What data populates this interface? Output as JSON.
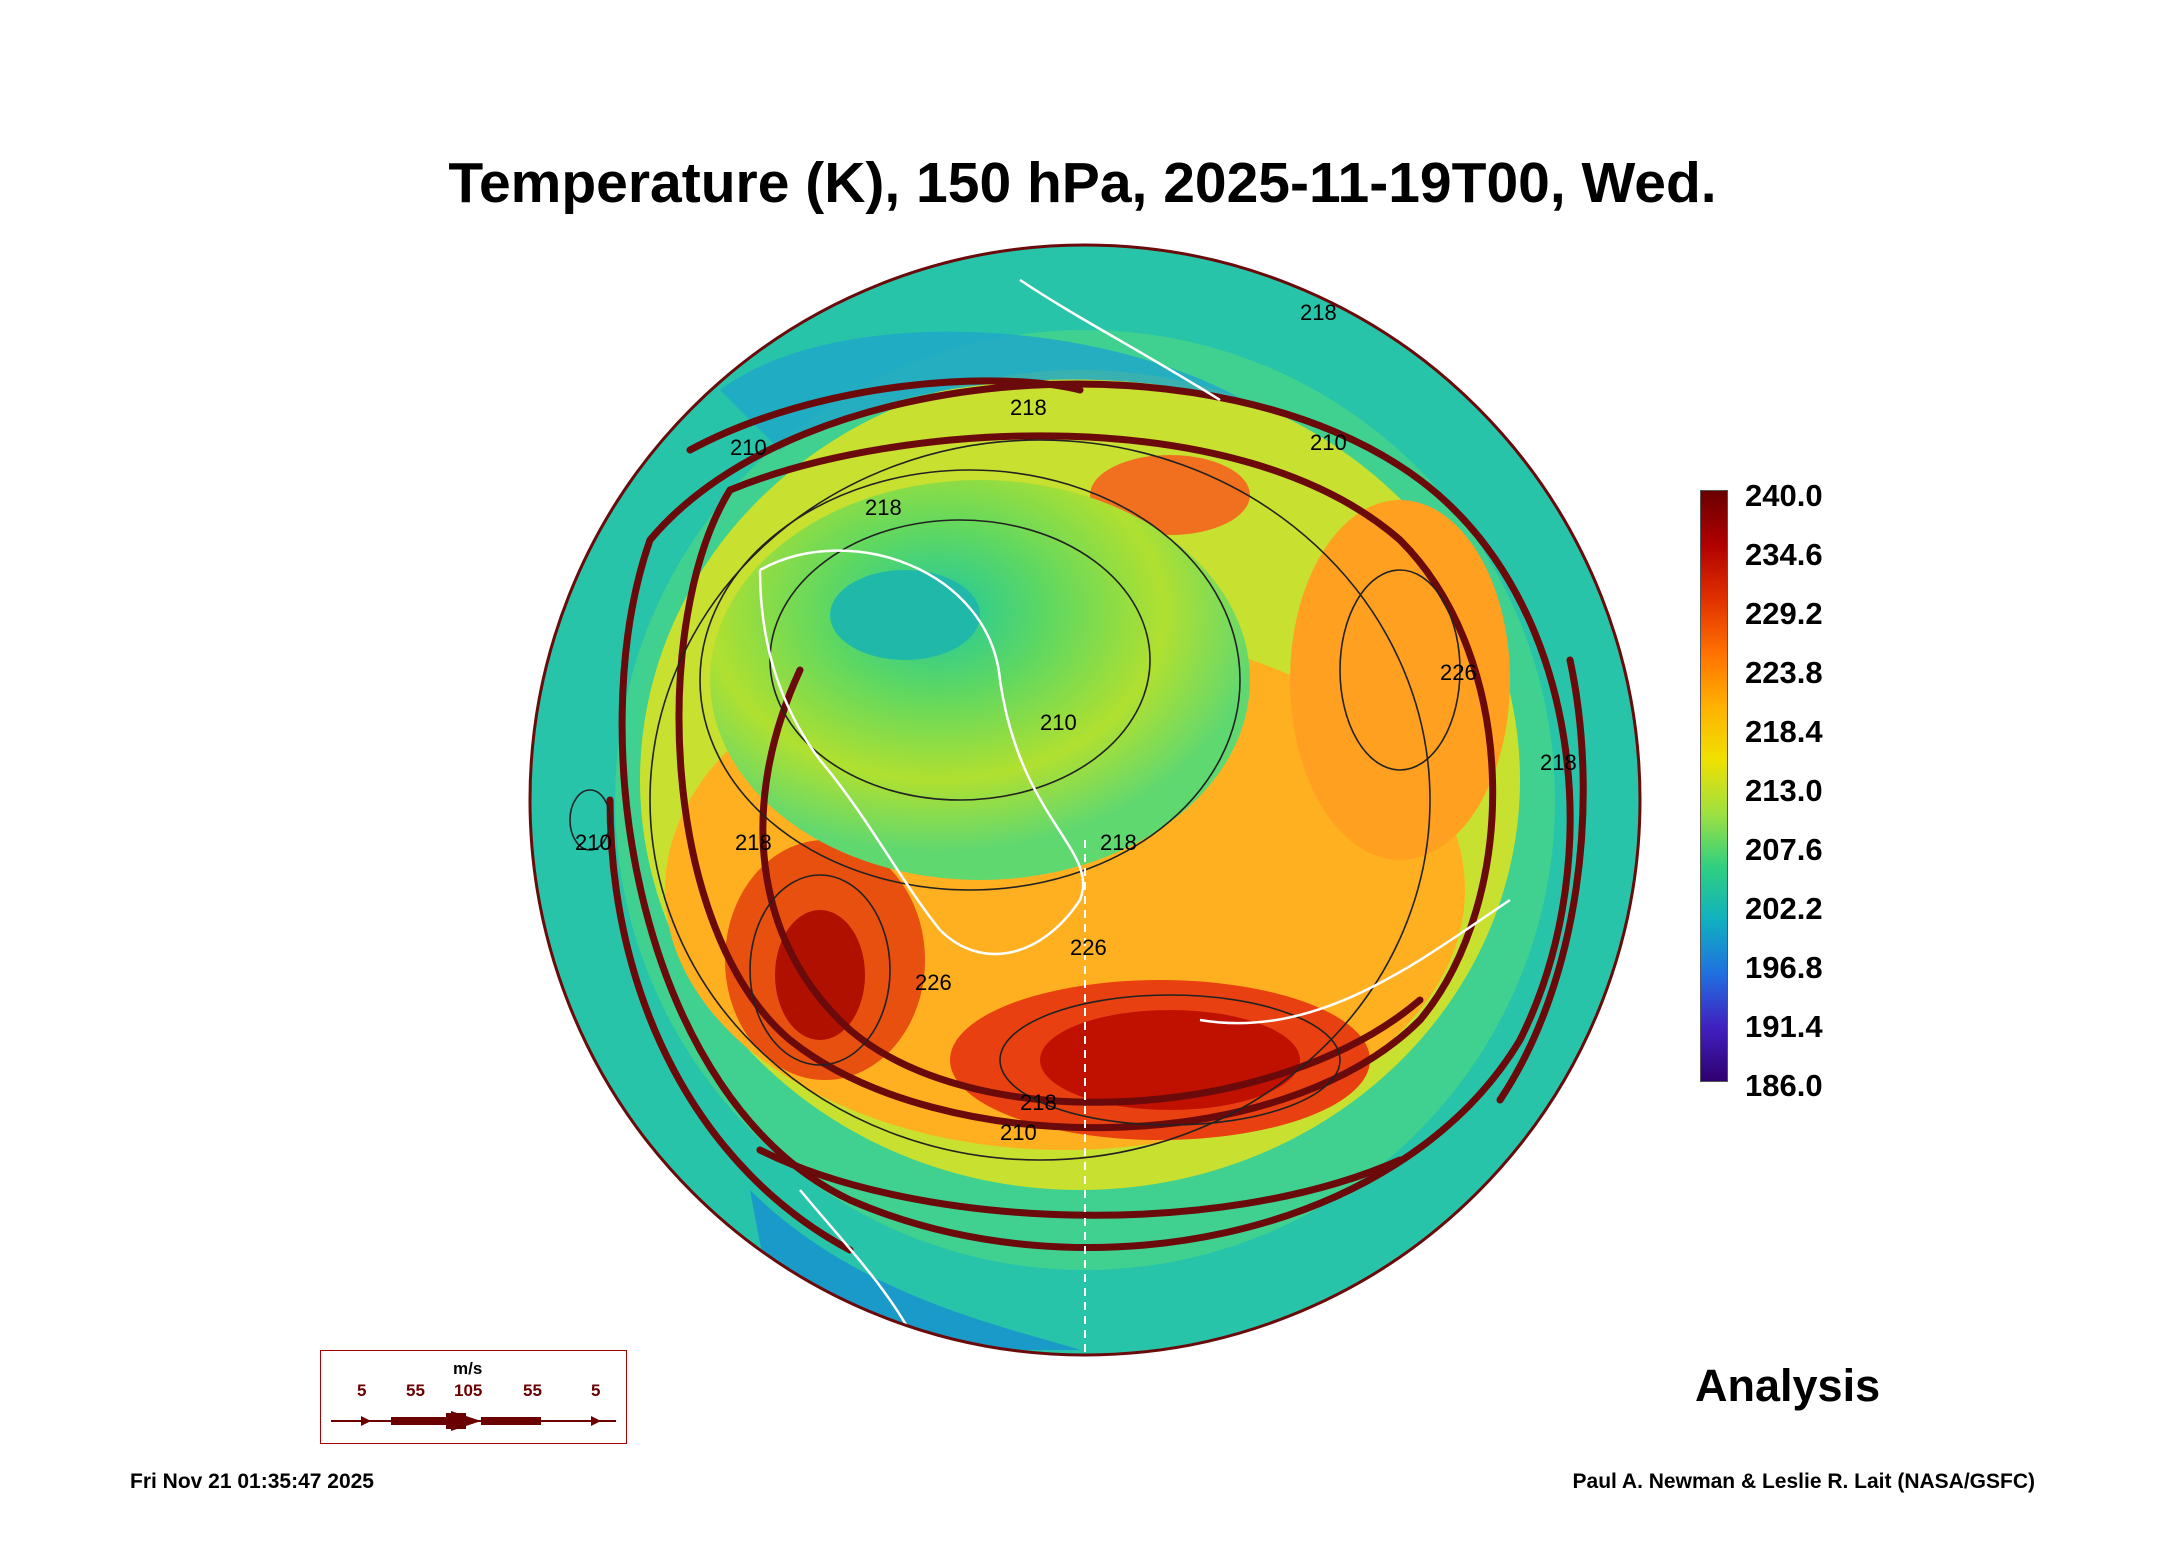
{
  "title": "Temperature (K), 150 hPa, 2025-11-19T00, Wed.",
  "colorbar": {
    "labels": [
      "240.0",
      "234.6",
      "229.2",
      "223.8",
      "218.4",
      "213.0",
      "207.6",
      "202.2",
      "196.8",
      "191.4",
      "186.0"
    ],
    "min": 186.0,
    "max": 240.0,
    "stops": [
      "#6a0000",
      "#b00000",
      "#e03000",
      "#ff7000",
      "#ffb000",
      "#f0e000",
      "#a0e040",
      "#30d080",
      "#10b0c0",
      "#2070e0",
      "#4020c0",
      "#300070"
    ]
  },
  "contour_labels": [
    "210",
    "218",
    "218",
    "210",
    "226",
    "218",
    "210",
    "218",
    "210",
    "218",
    "226",
    "226",
    "218",
    "218",
    "210"
  ],
  "wind_legend": {
    "unit": "m/s",
    "speeds": [
      "5",
      "55",
      "105",
      "55",
      "5"
    ]
  },
  "analysis_label": "Analysis",
  "footer": {
    "timestamp": "Fri Nov 21 01:35:47 2025",
    "credit": "Paul A. Newman & Leslie R. Lait (NASA/GSFC)"
  },
  "colors": {
    "streamline": "#6b0a0a",
    "coastline": "#ffffff"
  }
}
